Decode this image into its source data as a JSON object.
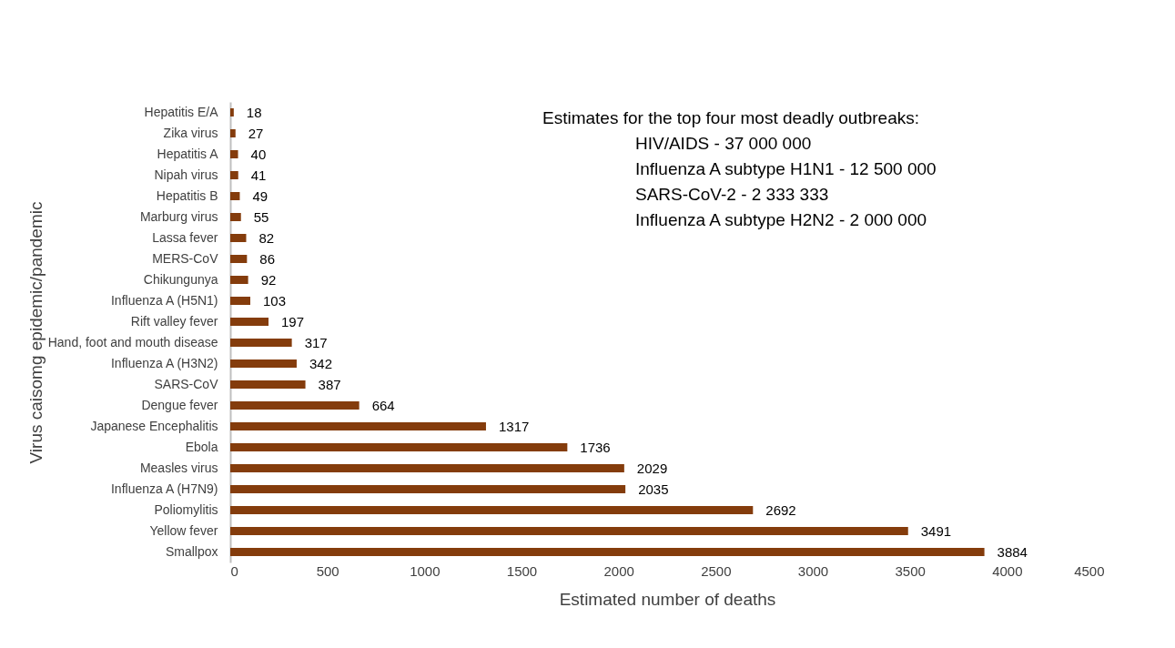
{
  "chart_data": {
    "type": "bar",
    "orientation": "horizontal",
    "xlabel": "Estimated number of deaths",
    "ylabel": "Virus caisomg epidemic/pandemic",
    "categories": [
      "Hepatitis E/A",
      "Zika virus",
      "Hepatitis A",
      "Nipah virus",
      "Hepatitis B",
      "Marburg virus",
      "Lassa fever",
      "MERS-CoV",
      "Chikungunya",
      "Influenza A (H5N1)",
      "Rift valley fever",
      "Hand, foot and mouth disease",
      "Influenza A (H3N2)",
      "SARS-CoV",
      "Dengue fever",
      "Japanese Encephalitis",
      "Ebola",
      "Measles virus",
      "Influenza A (H7N9)",
      "Poliomylitis",
      "Yellow fever",
      "Smallpox"
    ],
    "values": [
      18,
      27,
      40,
      41,
      49,
      55,
      82,
      86,
      92,
      103,
      197,
      317,
      342,
      387,
      664,
      1317,
      1736,
      2029,
      2035,
      2692,
      3491,
      3884
    ],
    "color": "#843c0c",
    "data_labels": true,
    "grid": false,
    "xlim": [
      0,
      4500
    ],
    "xticks": [
      0,
      500,
      1000,
      1500,
      2000,
      2500,
      3000,
      3500,
      4000,
      4500
    ],
    "annotations": [
      "Estimates for the top four most deadly outbreaks:",
      "HIV/AIDS                              - 37 000 000",
      "Influenza A subtype H1N1  - 12 500 000",
      "SARS-CoV-2                           -   2 333 333",
      "Influenza A subtype H2N2  -   2 000 000"
    ]
  }
}
